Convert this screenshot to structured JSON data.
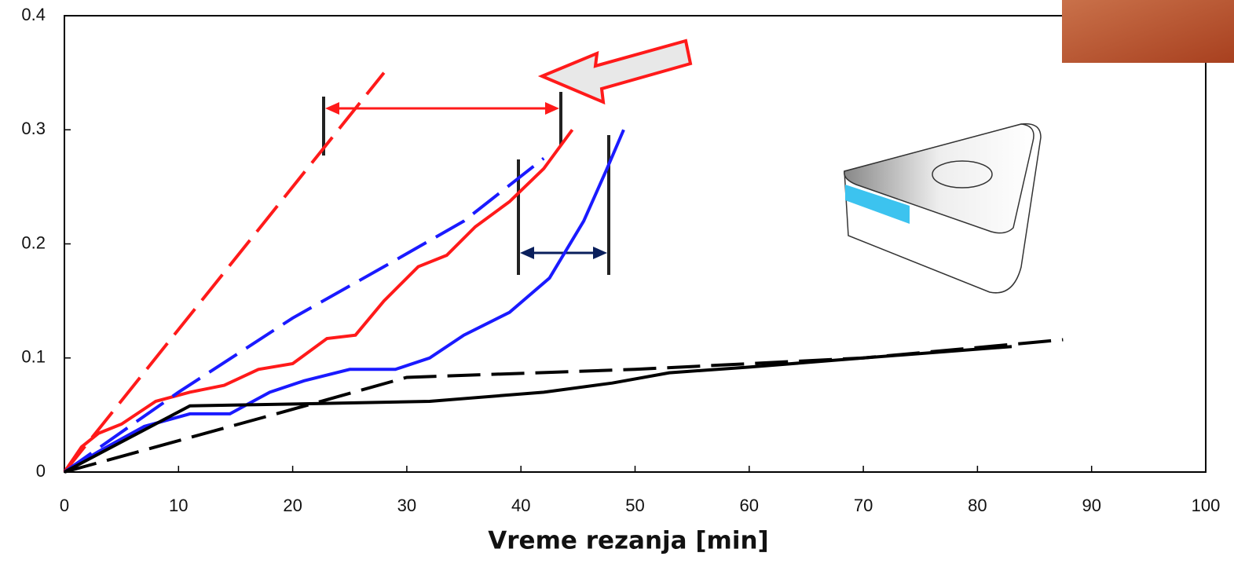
{
  "chart_data": {
    "type": "line",
    "x_label": "Vreme rezanja [min]",
    "xlim": [
      0,
      100
    ],
    "xticks": [
      0,
      10,
      20,
      30,
      40,
      50,
      60,
      70,
      80,
      90,
      100
    ],
    "ylim": [
      0,
      0.4
    ],
    "yticks": [
      0,
      0.1,
      0.2,
      0.3,
      0.4
    ],
    "series": [
      {
        "color": "#ff1a1a",
        "dashed": false,
        "x": [
          0,
          1.5,
          3,
          5,
          8,
          11,
          14,
          17,
          20,
          23,
          25.5,
          28,
          31,
          33.5,
          36,
          39,
          42,
          44.5
        ],
        "values": [
          0,
          0.022,
          0.034,
          0.042,
          0.062,
          0.07,
          0.076,
          0.09,
          0.095,
          0.117,
          0.12,
          0.15,
          0.18,
          0.19,
          0.215,
          0.237,
          0.266,
          0.3
        ]
      },
      {
        "color": "#ff1a1a",
        "dashed": true,
        "x": [
          0,
          28
        ],
        "values": [
          0,
          0.35
        ]
      },
      {
        "color": "#1a1aff",
        "dashed": false,
        "x": [
          0,
          3,
          7,
          11,
          14.5,
          18,
          21,
          25,
          29,
          32,
          35,
          39,
          42.5,
          45.5,
          47.5,
          49
        ],
        "values": [
          0,
          0.018,
          0.04,
          0.051,
          0.051,
          0.07,
          0.08,
          0.09,
          0.09,
          0.1,
          0.12,
          0.14,
          0.17,
          0.22,
          0.265,
          0.3
        ]
      },
      {
        "color": "#1a1aff",
        "dashed": true,
        "x": [
          0,
          10,
          20,
          28,
          35,
          42
        ],
        "values": [
          0,
          0.07,
          0.135,
          0.18,
          0.22,
          0.275
        ]
      },
      {
        "color": "#000000",
        "dashed": false,
        "x": [
          0,
          11,
          22,
          32,
          42,
          48,
          53,
          60,
          70,
          83
        ],
        "values": [
          0,
          0.058,
          0.06,
          0.062,
          0.07,
          0.078,
          0.087,
          0.092,
          0.1,
          0.11
        ]
      },
      {
        "color": "#000000",
        "dashed": true,
        "x": [
          0,
          20,
          30,
          50,
          70,
          87.5
        ],
        "values": [
          0,
          0.055,
          0.083,
          0.09,
          0.1,
          0.116
        ]
      }
    ]
  }
}
